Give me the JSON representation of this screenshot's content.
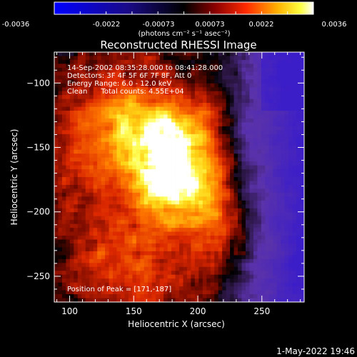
{
  "colorbar": {
    "ticks": [
      "-0.0036",
      "-0.0022",
      "-0.00073",
      "0.00073",
      "0.0022",
      "0.0036"
    ],
    "unit": "(photons cm⁻² s⁻¹ asec⁻²)"
  },
  "chart_data": {
    "type": "heatmap",
    "title": "Reconstructed RHESSI Image",
    "xlabel": "Heliocentric X (arcsec)",
    "ylabel": "Heliocentric Y (arcsec)",
    "xlim": [
      88,
      283
    ],
    "ylim": [
      -270,
      -76
    ],
    "xticks": [
      100,
      150,
      200,
      250
    ],
    "yticks": [
      -100,
      -150,
      -200,
      -250
    ],
    "color_range": [
      -0.0036,
      0.0036
    ],
    "colormap": [
      "#0000ff",
      "#000000",
      "#ff0000",
      "#ffff00",
      "#ffffff"
    ],
    "annotations": [
      "14-Sep-2002 08:35:28.000 to 08:41:28.000",
      "Detectors: 3F 4F 5F 6F 7F 8F, Att 0",
      "Energy Range: 6.0 - 12.0 keV",
      "Clean      Total counts: 4.55E+04"
    ],
    "peak_label": "Position of Peak = [171,-187]",
    "peak": [
      171,
      -187
    ]
  },
  "footer": {
    "timestamp": "1-May-2022 19:46"
  }
}
